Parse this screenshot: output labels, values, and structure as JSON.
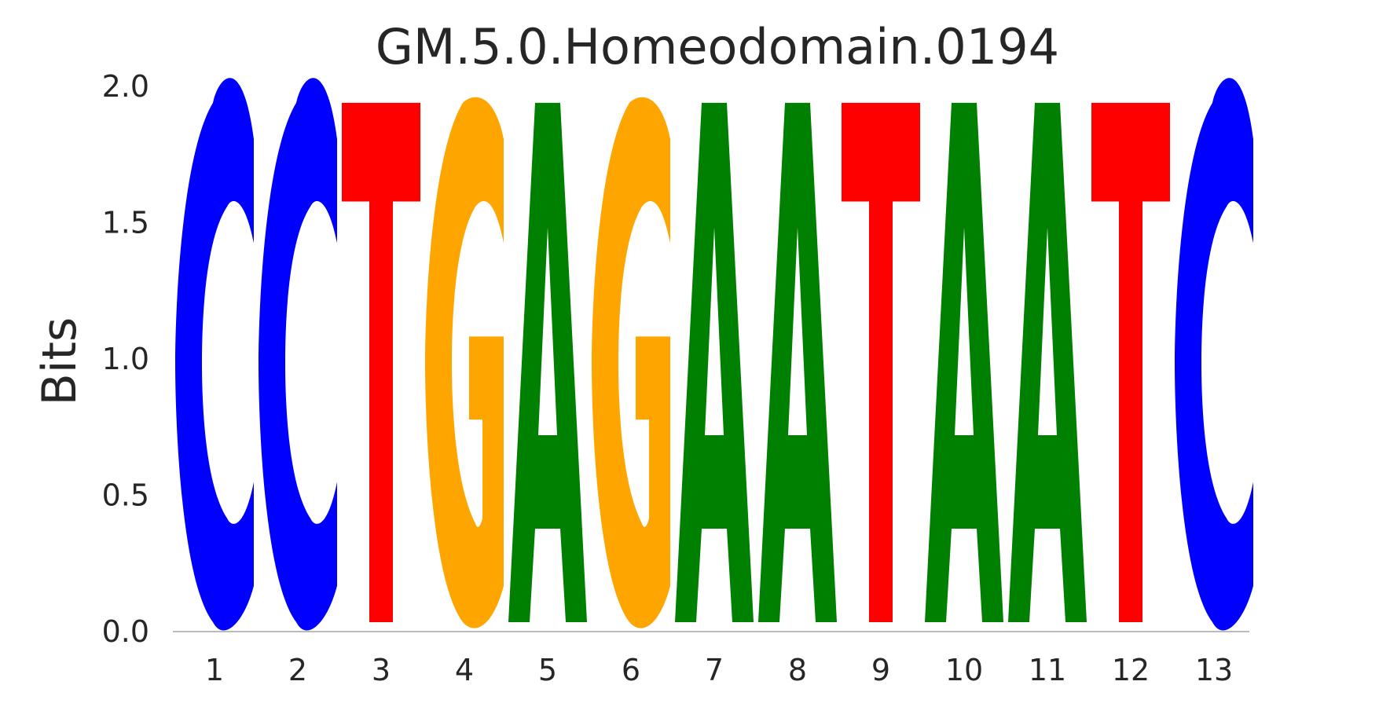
{
  "chart_data": {
    "type": "sequence-logo",
    "title": "GM.5.0.Homeodomain.0194",
    "xlabel": "",
    "ylabel": "Bits",
    "ylim": [
      0,
      2.0
    ],
    "yticks": [
      "0.0",
      "0.5",
      "1.0",
      "1.5",
      "2.0"
    ],
    "positions": [
      "1",
      "2",
      "3",
      "4",
      "5",
      "6",
      "7",
      "8",
      "9",
      "10",
      "11",
      "12",
      "13"
    ],
    "sequence": [
      "C",
      "C",
      "T",
      "G",
      "A",
      "G",
      "A",
      "A",
      "T",
      "A",
      "A",
      "T",
      "C"
    ],
    "bits": [
      1.94,
      1.94,
      1.94,
      1.94,
      1.94,
      1.94,
      1.94,
      1.94,
      1.94,
      1.94,
      1.94,
      1.94,
      1.94
    ],
    "grid": false,
    "legend": "none",
    "colors": {
      "A": "#008000",
      "C": "#0000ff",
      "G": "#ffa500",
      "T": "#ff0000"
    }
  }
}
